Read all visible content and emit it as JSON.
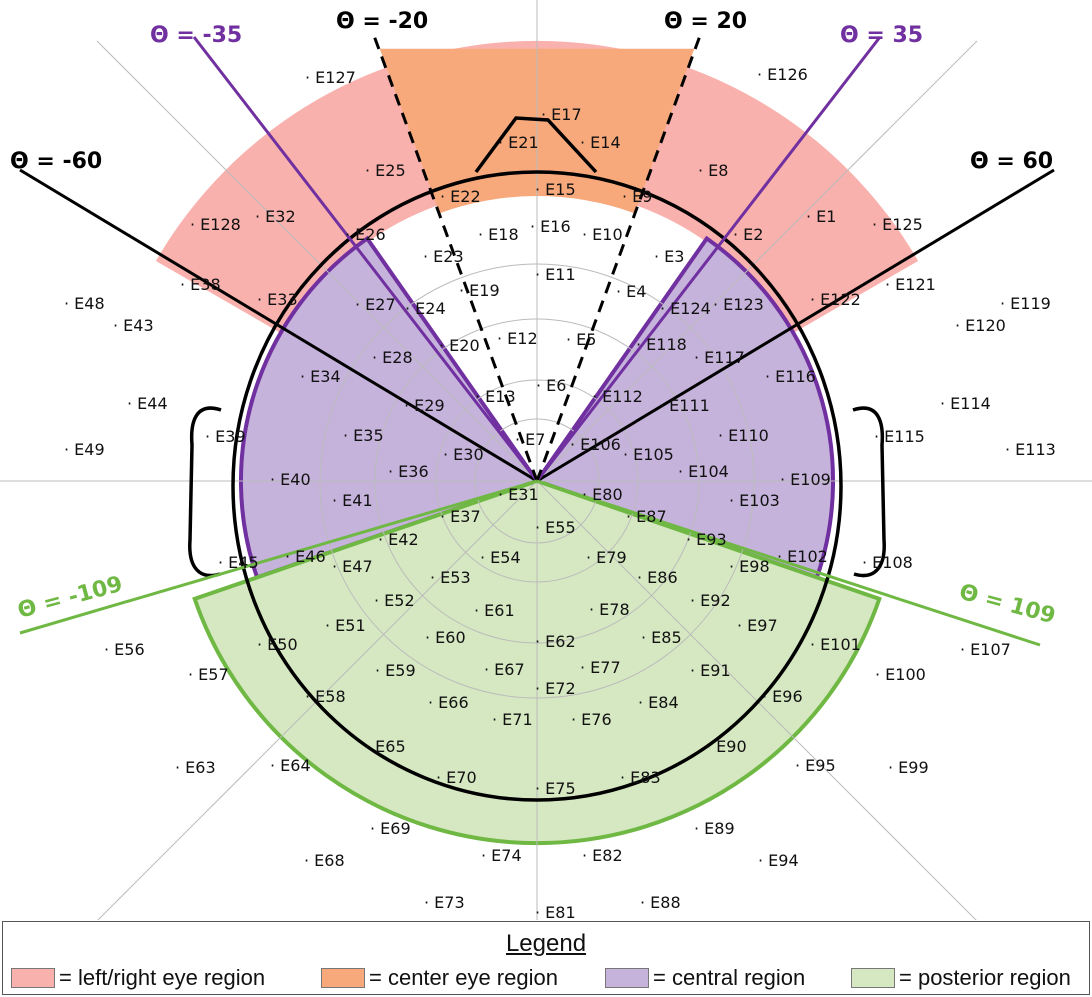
{
  "colors": {
    "eye_lr": "#f9b1ad",
    "eye_center": "#f7a97c",
    "central": "#c6b3dc",
    "central_border": "#7030a0",
    "posterior": "#d6e8c2",
    "posterior_border": "#70b844",
    "outline": "#000000"
  },
  "angle_labels": {
    "neg60": "Θ = -60",
    "neg35": "Θ = -35",
    "neg20": "Θ = -20",
    "pos20": "Θ = 20",
    "pos35": "Θ = 35",
    "pos60": "Θ = 60",
    "neg109": "Θ = -109",
    "pos109": "Θ = 109"
  },
  "electrodes": [
    "E1",
    "E2",
    "E3",
    "E4",
    "E5",
    "E6",
    "E7",
    "E8",
    "E9",
    "E10",
    "E11",
    "E12",
    "E13",
    "E14",
    "E15",
    "E16",
    "E17",
    "E18",
    "E19",
    "E20",
    "E21",
    "E22",
    "E23",
    "E24",
    "E25",
    "E26",
    "E27",
    "E28",
    "E29",
    "E30",
    "E31",
    "E32",
    "E33",
    "E34",
    "E35",
    "E36",
    "E37",
    "E38",
    "E39",
    "E40",
    "E41",
    "E42",
    "E43",
    "E44",
    "E45",
    "E46",
    "E47",
    "E48",
    "E49",
    "E50",
    "E51",
    "E52",
    "E53",
    "E54",
    "E55",
    "E56",
    "E57",
    "E58",
    "E59",
    "E60",
    "E61",
    "E62",
    "E63",
    "E64",
    "E65",
    "E66",
    "E67",
    "E68",
    "E69",
    "E70",
    "E71",
    "E72",
    "E73",
    "E74",
    "E75",
    "E76",
    "E77",
    "E78",
    "E79",
    "E80",
    "E81",
    "E82",
    "E83",
    "E84",
    "E85",
    "E86",
    "E87",
    "E88",
    "E89",
    "E90",
    "E91",
    "E92",
    "E93",
    "E94",
    "E95",
    "E96",
    "E97",
    "E98",
    "E99",
    "E100",
    "E101",
    "E102",
    "E103",
    "E104",
    "E105",
    "E106",
    "E107",
    "E108",
    "E109",
    "E110",
    "E111",
    "E112",
    "E113",
    "E114",
    "E115",
    "E116",
    "E117",
    "E118",
    "E119",
    "E120",
    "E121",
    "E122",
    "E123",
    "E124",
    "E125",
    "E126",
    "E127",
    "E128"
  ],
  "legend": {
    "title": "Legend",
    "items": [
      {
        "label": "= left/right eye region",
        "color": "#f9b1ad"
      },
      {
        "label": "= center eye region",
        "color": "#f7a97c"
      },
      {
        "label": "= central region",
        "color": "#c6b3dc"
      },
      {
        "label": "= posterior region",
        "color": "#d6e8c2"
      }
    ]
  }
}
